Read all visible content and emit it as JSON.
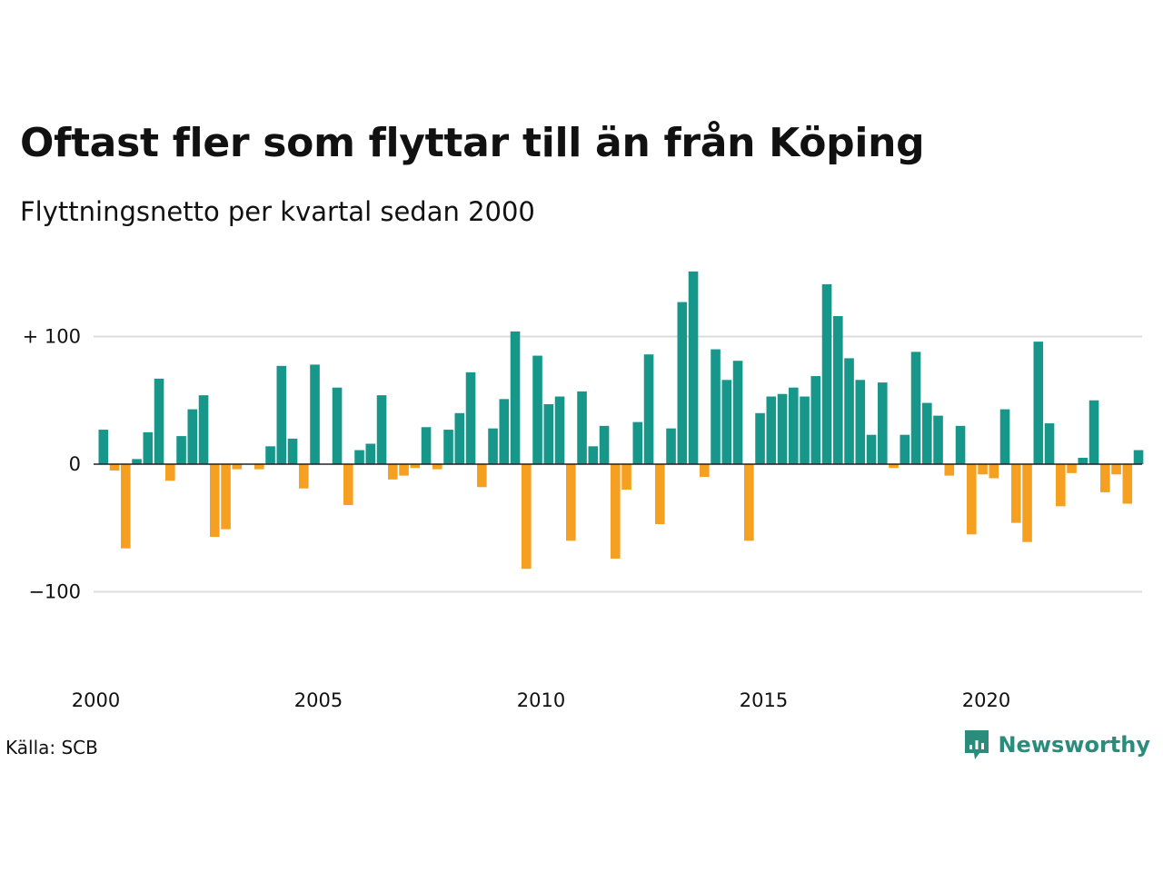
{
  "title": "Oftast fler som flyttar till än från Köping",
  "subtitle": "Flyttningsnetto per kvartal sedan 2000",
  "source": "Källa: SCB",
  "brand": {
    "name": "Newsworthy",
    "icon": "newsworthy-logo-icon",
    "color": "#2a8c7b"
  },
  "colors": {
    "positive": "#17968a",
    "negative": "#f5a020",
    "grid": "#dddddd",
    "baseline": "#222222"
  },
  "chart_data": {
    "type": "bar",
    "x_start": "2000 Q1",
    "x_ticks": [
      "2000",
      "2005",
      "2010",
      "2015",
      "2020"
    ],
    "y_ticks": [
      "+ 100",
      "0",
      "−100"
    ],
    "y_tick_values": [
      100,
      0,
      -100
    ],
    "ylim": [
      -160,
      160
    ],
    "grid": true,
    "values": [
      27,
      -5,
      -66,
      4,
      25,
      67,
      -13,
      22,
      43,
      54,
      -57,
      -51,
      -4,
      0,
      -4,
      14,
      77,
      20,
      -19,
      78,
      0,
      60,
      -32,
      11,
      16,
      54,
      -12,
      -9,
      -3,
      29,
      -4,
      27,
      40,
      72,
      -18,
      28,
      51,
      104,
      -82,
      85,
      47,
      53,
      -60,
      57,
      14,
      30,
      -74,
      -20,
      33,
      86,
      -47,
      28,
      127,
      151,
      -10,
      90,
      66,
      81,
      -60,
      40,
      53,
      55,
      60,
      53,
      69,
      141,
      116,
      83,
      66,
      23,
      64,
      -3,
      23,
      88,
      48,
      38,
      -9,
      30,
      -55,
      -8,
      -11,
      43,
      -46,
      -61,
      96,
      32,
      -33,
      -7,
      5,
      50,
      -22,
      -8,
      -31,
      11
    ]
  }
}
